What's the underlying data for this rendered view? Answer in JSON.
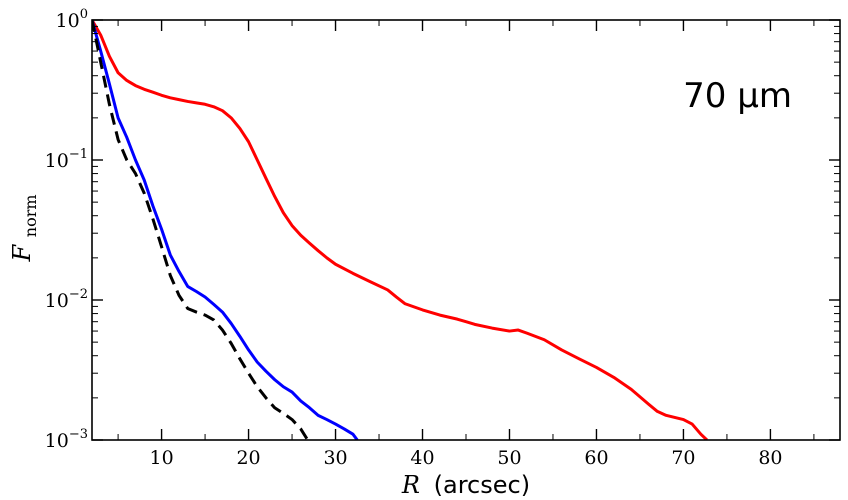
{
  "chart_data": {
    "type": "line",
    "title": "",
    "annotation": "70 μm",
    "xlabel": {
      "symbol": "R",
      "unit": "(arcsec)"
    },
    "ylabel": {
      "symbol": "F",
      "subscript": "norm"
    },
    "xlim": [
      2,
      88
    ],
    "ylim": [
      0.001,
      1
    ],
    "yscale": "log",
    "grid": false,
    "legend": "none",
    "x_ticks": [
      10,
      20,
      30,
      40,
      50,
      60,
      70,
      80
    ],
    "x_tick_labels": [
      "10",
      "20",
      "30",
      "40",
      "50",
      "60",
      "70",
      "80"
    ],
    "y_ticks": [
      {
        "value": 1,
        "base": "10",
        "exp": "0"
      },
      {
        "value": 0.1,
        "base": "10",
        "exp": "−1"
      },
      {
        "value": 0.01,
        "base": "10",
        "exp": "−2"
      },
      {
        "value": 0.001,
        "base": "10",
        "exp": "−3"
      }
    ],
    "series": [
      {
        "color": "#ff0000",
        "dash": "solid",
        "points": [
          [
            2,
            1.0
          ],
          [
            3,
            0.78
          ],
          [
            4,
            0.55
          ],
          [
            5,
            0.42
          ],
          [
            6,
            0.37
          ],
          [
            7,
            0.34
          ],
          [
            8,
            0.32
          ],
          [
            9,
            0.305
          ],
          [
            10,
            0.29
          ],
          [
            11,
            0.278
          ],
          [
            12,
            0.27
          ],
          [
            13,
            0.262
          ],
          [
            14,
            0.256
          ],
          [
            15,
            0.25
          ],
          [
            16,
            0.24
          ],
          [
            17,
            0.225
          ],
          [
            18,
            0.2
          ],
          [
            19,
            0.168
          ],
          [
            20,
            0.135
          ],
          [
            21,
            0.1
          ],
          [
            22,
            0.074
          ],
          [
            23,
            0.055
          ],
          [
            24,
            0.042
          ],
          [
            25,
            0.034
          ],
          [
            26,
            0.029
          ],
          [
            27,
            0.0255
          ],
          [
            28,
            0.0225
          ],
          [
            29,
            0.02
          ],
          [
            30,
            0.018
          ],
          [
            32,
            0.0155
          ],
          [
            34,
            0.0135
          ],
          [
            36,
            0.0118
          ],
          [
            37,
            0.0105
          ],
          [
            38,
            0.0094
          ],
          [
            40,
            0.0085
          ],
          [
            42,
            0.0078
          ],
          [
            44,
            0.0073
          ],
          [
            45,
            0.007
          ],
          [
            46,
            0.0067
          ],
          [
            48,
            0.0063
          ],
          [
            50,
            0.006
          ],
          [
            51,
            0.0061
          ],
          [
            52,
            0.0058
          ],
          [
            54,
            0.0052
          ],
          [
            56,
            0.0044
          ],
          [
            58,
            0.0038
          ],
          [
            60,
            0.0033
          ],
          [
            62,
            0.0028
          ],
          [
            64,
            0.0023
          ],
          [
            66,
            0.0018
          ],
          [
            67,
            0.0016
          ],
          [
            68,
            0.0015
          ],
          [
            70,
            0.0014
          ],
          [
            71,
            0.0013
          ],
          [
            72,
            0.0011
          ],
          [
            72.7,
            0.001
          ]
        ]
      },
      {
        "color": "#0000ff",
        "dash": "solid",
        "points": [
          [
            2,
            1.0
          ],
          [
            3,
            0.6
          ],
          [
            4,
            0.35
          ],
          [
            5,
            0.2
          ],
          [
            6,
            0.145
          ],
          [
            7,
            0.1
          ],
          [
            8,
            0.072
          ],
          [
            9,
            0.047
          ],
          [
            10,
            0.032
          ],
          [
            11,
            0.021
          ],
          [
            12,
            0.016
          ],
          [
            13,
            0.0125
          ],
          [
            14,
            0.0115
          ],
          [
            15,
            0.0105
          ],
          [
            16,
            0.0093
          ],
          [
            17,
            0.0082
          ],
          [
            18,
            0.0068
          ],
          [
            19,
            0.0055
          ],
          [
            20,
            0.0044
          ],
          [
            21,
            0.0036
          ],
          [
            22,
            0.0031
          ],
          [
            23,
            0.0027
          ],
          [
            24,
            0.0024
          ],
          [
            25,
            0.0022
          ],
          [
            26,
            0.0019
          ],
          [
            27,
            0.0017
          ],
          [
            28,
            0.0015
          ],
          [
            29,
            0.0014
          ],
          [
            30,
            0.0013
          ],
          [
            31,
            0.0012
          ],
          [
            32,
            0.0011
          ],
          [
            32.5,
            0.001
          ]
        ]
      },
      {
        "color": "#000000",
        "dash": "dashed",
        "points": [
          [
            2,
            1.0
          ],
          [
            3,
            0.5
          ],
          [
            4,
            0.25
          ],
          [
            5,
            0.14
          ],
          [
            6,
            0.1
          ],
          [
            7,
            0.08
          ],
          [
            8,
            0.058
          ],
          [
            9,
            0.038
          ],
          [
            10,
            0.024
          ],
          [
            11,
            0.015
          ],
          [
            12,
            0.0108
          ],
          [
            13,
            0.0087
          ],
          [
            14,
            0.0082
          ],
          [
            15,
            0.0078
          ],
          [
            16,
            0.0072
          ],
          [
            17,
            0.0061
          ],
          [
            18,
            0.0049
          ],
          [
            19,
            0.0038
          ],
          [
            20,
            0.003
          ],
          [
            21,
            0.0024
          ],
          [
            22,
            0.002
          ],
          [
            23,
            0.0017
          ],
          [
            24,
            0.00155
          ],
          [
            25,
            0.0014
          ],
          [
            26,
            0.0012
          ],
          [
            26.8,
            0.001
          ]
        ]
      }
    ]
  }
}
